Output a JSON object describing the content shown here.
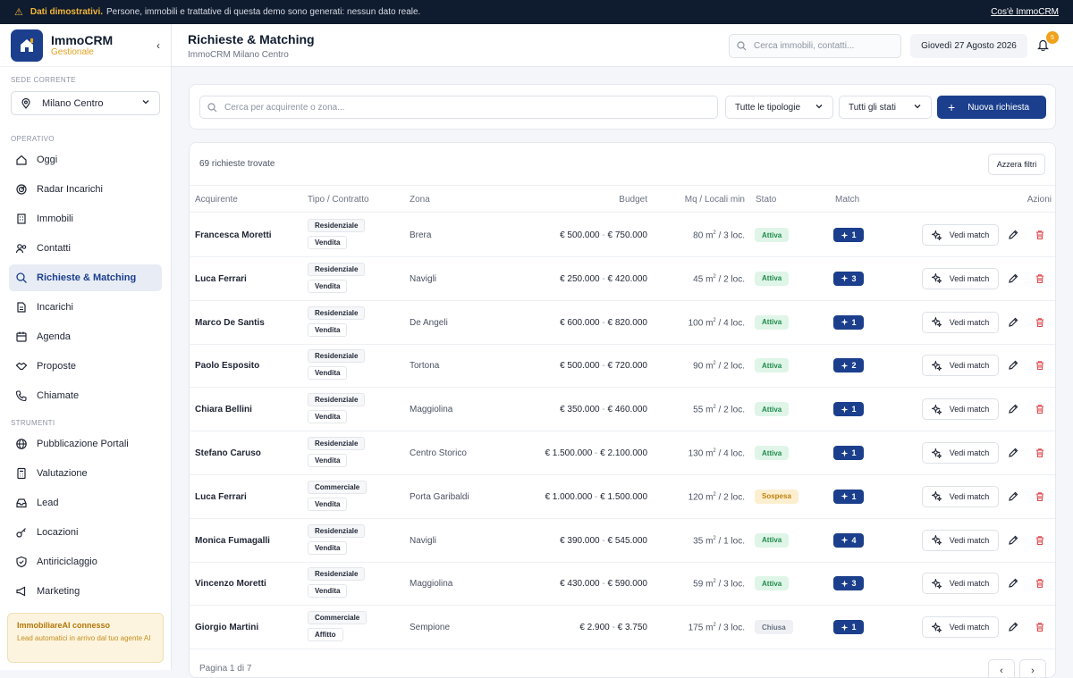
{
  "banner": {
    "label": "Dati dimostrativi.",
    "message": "Persone, immobili e trattative di questa demo sono generati: nessun dato reale.",
    "link": "Cos'è ImmoCRM"
  },
  "brand": {
    "name": "ImmoCRM",
    "sub": "Gestionale"
  },
  "sede": {
    "label": "SEDE CORRENTE",
    "value": "Milano Centro"
  },
  "nav": {
    "operativo_label": "OPERATIVO",
    "operativo": [
      {
        "label": "Oggi",
        "icon": "home-icon"
      },
      {
        "label": "Radar Incarichi",
        "icon": "radar-icon"
      },
      {
        "label": "Immobili",
        "icon": "building-icon"
      },
      {
        "label": "Contatti",
        "icon": "users-icon"
      },
      {
        "label": "Richieste & Matching",
        "icon": "search-icon",
        "active": true
      },
      {
        "label": "Incarichi",
        "icon": "document-icon"
      },
      {
        "label": "Agenda",
        "icon": "calendar-icon"
      },
      {
        "label": "Proposte",
        "icon": "handshake-icon"
      },
      {
        "label": "Chiamate",
        "icon": "phone-icon"
      }
    ],
    "strumenti_label": "STRUMENTI",
    "strumenti": [
      {
        "label": "Pubblicazione Portali",
        "icon": "globe-icon"
      },
      {
        "label": "Valutazione",
        "icon": "calculator-icon"
      },
      {
        "label": "Lead",
        "icon": "inbox-icon"
      },
      {
        "label": "Locazioni",
        "icon": "key-icon"
      },
      {
        "label": "Antiriciclaggio",
        "icon": "shield-icon"
      },
      {
        "label": "Marketing",
        "icon": "megaphone-icon"
      }
    ]
  },
  "ai_box": {
    "title": "ImmobiliareAI connesso",
    "text": "Lead automatici in arrivo dal tuo agente AI"
  },
  "header": {
    "title": "Richieste & Matching",
    "subtitle": "ImmoCRM Milano Centro",
    "search_placeholder": "Cerca immobili, contatti...",
    "date": "Giovedì 27 Agosto 2026",
    "notifications": "5"
  },
  "filters": {
    "search_placeholder": "Cerca per acquirente o zona...",
    "tipologia": "Tutte le tipologie",
    "stato": "Tutti gli stati",
    "new_button": "Nuova richiesta"
  },
  "table": {
    "count": "69 richieste trovate",
    "reset": "Azzera filtri",
    "headers": {
      "acquirente": "Acquirente",
      "tipo": "Tipo / Contratto",
      "zona": "Zona",
      "budget": "Budget",
      "mq": "Mq / Locali min",
      "stato": "Stato",
      "match": "Match",
      "azioni": "Azioni"
    },
    "view_label": "Vedi match",
    "rows": [
      {
        "name": "Francesca Moretti",
        "tipo": "Residenziale",
        "contratto": "Vendita",
        "zona": "Brera",
        "min": "€ 500.000",
        "max": "€ 750.000",
        "mq": "80",
        "loc": "3 loc.",
        "stato": "Attiva",
        "match": "1"
      },
      {
        "name": "Luca Ferrari",
        "tipo": "Residenziale",
        "contratto": "Vendita",
        "zona": "Navigli",
        "min": "€ 250.000",
        "max": "€ 420.000",
        "mq": "45",
        "loc": "2 loc.",
        "stato": "Attiva",
        "match": "3"
      },
      {
        "name": "Marco De Santis",
        "tipo": "Residenziale",
        "contratto": "Vendita",
        "zona": "De Angeli",
        "min": "€ 600.000",
        "max": "€ 820.000",
        "mq": "100",
        "loc": "4 loc.",
        "stato": "Attiva",
        "match": "1"
      },
      {
        "name": "Paolo Esposito",
        "tipo": "Residenziale",
        "contratto": "Vendita",
        "zona": "Tortona",
        "min": "€ 500.000",
        "max": "€ 720.000",
        "mq": "90",
        "loc": "2 loc.",
        "stato": "Attiva",
        "match": "2"
      },
      {
        "name": "Chiara Bellini",
        "tipo": "Residenziale",
        "contratto": "Vendita",
        "zona": "Maggiolina",
        "min": "€ 350.000",
        "max": "€ 460.000",
        "mq": "55",
        "loc": "2 loc.",
        "stato": "Attiva",
        "match": "1"
      },
      {
        "name": "Stefano Caruso",
        "tipo": "Residenziale",
        "contratto": "Vendita",
        "zona": "Centro Storico",
        "min": "€ 1.500.000",
        "max": "€ 2.100.000",
        "mq": "130",
        "loc": "4 loc.",
        "stato": "Attiva",
        "match": "1"
      },
      {
        "name": "Luca Ferrari",
        "tipo": "Commerciale",
        "contratto": "Vendita",
        "zona": "Porta Garibaldi",
        "min": "€ 1.000.000",
        "max": "€ 1.500.000",
        "mq": "120",
        "loc": "2 loc.",
        "stato": "Sospesa",
        "match": "1"
      },
      {
        "name": "Monica Fumagalli",
        "tipo": "Residenziale",
        "contratto": "Vendita",
        "zona": "Navigli",
        "min": "€ 390.000",
        "max": "€ 545.000",
        "mq": "35",
        "loc": "1 loc.",
        "stato": "Attiva",
        "match": "4"
      },
      {
        "name": "Vincenzo Moretti",
        "tipo": "Residenziale",
        "contratto": "Vendita",
        "zona": "Maggiolina",
        "min": "€ 430.000",
        "max": "€ 590.000",
        "mq": "59",
        "loc": "3 loc.",
        "stato": "Attiva",
        "match": "3"
      },
      {
        "name": "Giorgio Martini",
        "tipo": "Commerciale",
        "contratto": "Affitto",
        "zona": "Sempione",
        "min": "€ 2.900",
        "max": "€ 3.750",
        "mq": "175",
        "loc": "3 loc.",
        "stato": "Chiusa",
        "match": "1"
      }
    ],
    "pager": "Pagina 1 di 7",
    "prev": "‹",
    "next": "›"
  },
  "colors": {
    "primary": "#1b3f8c",
    "accent": "#f0a21b",
    "dark": "#0f1b2e"
  }
}
